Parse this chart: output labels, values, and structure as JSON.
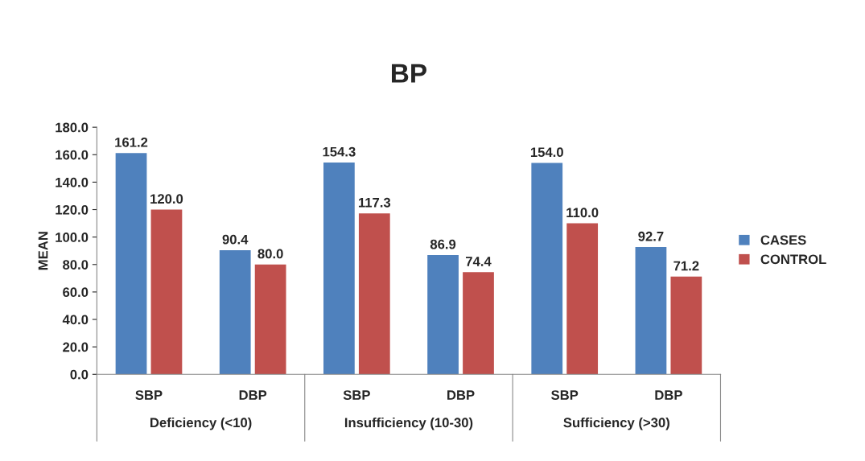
{
  "chart_data": {
    "type": "bar",
    "title": "BP",
    "ylabel": "MEAN",
    "categories": [
      "SBP",
      "DBP",
      "SBP",
      "DBP",
      "SBP",
      "DBP"
    ],
    "series": [
      {
        "name": "CASES",
        "color": "#4f81bd",
        "values": [
          161.2,
          90.4,
          154.3,
          86.9,
          154.0,
          92.7
        ],
        "value_labels": [
          "161.2",
          "90.4",
          "154.3",
          "86.9",
          "154.0",
          "92.7"
        ]
      },
      {
        "name": "CONTROL",
        "color": "#c0504d",
        "values": [
          120.0,
          80.0,
          117.3,
          74.4,
          110.0,
          71.2
        ],
        "value_labels": [
          "120.0",
          "80.0",
          "117.3",
          "74.4",
          "110.0",
          "71.2"
        ]
      }
    ],
    "ylim": [
      0,
      180
    ],
    "yticks": [
      {
        "value": 0,
        "label": "0.0"
      },
      {
        "value": 20,
        "label": "20.0"
      },
      {
        "value": 40,
        "label": "40.0"
      },
      {
        "value": 60,
        "label": "60.0"
      },
      {
        "value": 80,
        "label": "80.0"
      },
      {
        "value": 100,
        "label": "100.0"
      },
      {
        "value": 120,
        "label": "120.0"
      },
      {
        "value": 140,
        "label": "140.0"
      },
      {
        "value": 160,
        "label": "160.0"
      },
      {
        "value": 180,
        "label": "180.0"
      }
    ],
    "annotations": [
      "Deficiency (<10)",
      "Insufficiency (10-30)",
      "Sufficiency (>30)"
    ],
    "grid": false,
    "legend": "right"
  }
}
